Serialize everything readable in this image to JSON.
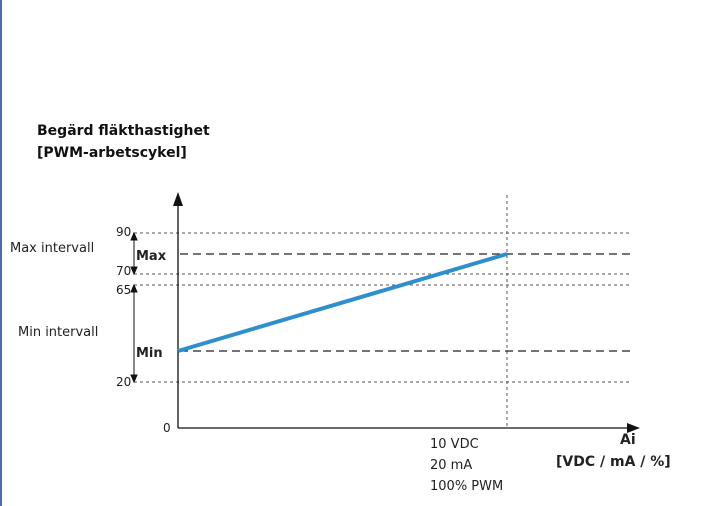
{
  "chart_data": {
    "type": "line",
    "title_line1": "Begärd fläkthastighet",
    "title_line2": "[PWM-arbetscykel]",
    "y_ticks": [
      "90",
      "70",
      "65",
      "20",
      "0"
    ],
    "y_interval_labels": {
      "max_interval": "Max intervall",
      "min_interval": "Min intervall"
    },
    "line_labels": {
      "max": "Max",
      "min": "Min"
    },
    "x_end_labels": [
      "10 VDC",
      "20 mA",
      "100% PWM"
    ],
    "x_axis_label": "Ai",
    "x_axis_unit": "[VDC / mA / %]",
    "series": [
      {
        "points": [
          {
            "x": 0,
            "y": "Min"
          },
          {
            "x": 100,
            "y": "Max"
          }
        ],
        "color": "#2e8fcf"
      }
    ]
  }
}
